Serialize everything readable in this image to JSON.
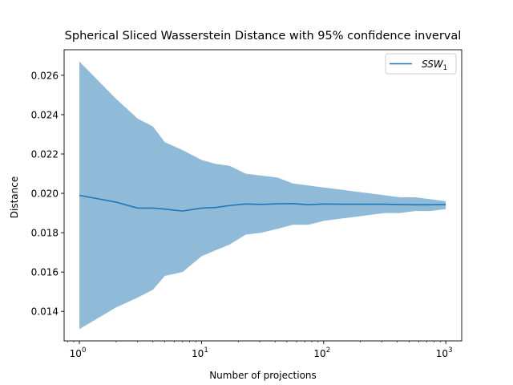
{
  "chart_data": {
    "type": "line",
    "title": "Spherical Sliced Wasserstein Distance with 95% confidence inverval",
    "xlabel": "Number of projections",
    "ylabel": "Distance",
    "xscale": "log",
    "xlim": [
      0.75,
      1350
    ],
    "ylim": [
      0.0125,
      0.0273
    ],
    "grid": false,
    "legend_position": "top-right",
    "x_ticks": [
      {
        "value": 1,
        "base": "10",
        "exp": "0"
      },
      {
        "value": 10,
        "base": "10",
        "exp": "1"
      },
      {
        "value": 100,
        "base": "10",
        "exp": "2"
      },
      {
        "value": 1000,
        "base": "10",
        "exp": "3"
      }
    ],
    "y_ticks": [
      {
        "value": 0.014,
        "label": "0.014"
      },
      {
        "value": 0.016,
        "label": "0.016"
      },
      {
        "value": 0.018,
        "label": "0.018"
      },
      {
        "value": 0.02,
        "label": "0.020"
      },
      {
        "value": 0.022,
        "label": "0.022"
      },
      {
        "value": 0.024,
        "label": "0.024"
      },
      {
        "value": 0.026,
        "label": "0.026"
      }
    ],
    "series": [
      {
        "name": "SSW",
        "name_subscript": "1",
        "color": "#1f77b4",
        "band_color": "#1f77b4",
        "band_alpha": 0.5,
        "x": [
          1,
          2,
          3,
          4,
          5,
          7,
          10,
          13,
          17,
          23,
          31,
          42,
          56,
          75,
          100,
          133,
          178,
          237,
          316,
          422,
          562,
          750,
          1000
        ],
        "y": [
          0.0199,
          0.01955,
          0.01925,
          0.01925,
          0.0192,
          0.0191,
          0.01925,
          0.01928,
          0.01938,
          0.01946,
          0.01944,
          0.01947,
          0.01948,
          0.01942,
          0.01946,
          0.01945,
          0.01945,
          0.01945,
          0.01945,
          0.01943,
          0.01942,
          0.01942,
          0.01943
        ],
        "lower": [
          0.0131,
          0.0142,
          0.0147,
          0.0151,
          0.0158,
          0.016,
          0.0168,
          0.0171,
          0.0174,
          0.0179,
          0.018,
          0.0182,
          0.0184,
          0.0184,
          0.0186,
          0.0187,
          0.0188,
          0.0189,
          0.019,
          0.019,
          0.0191,
          0.0191,
          0.0192
        ],
        "upper": [
          0.0267,
          0.0248,
          0.0238,
          0.0234,
          0.0226,
          0.0222,
          0.0217,
          0.0215,
          0.0214,
          0.021,
          0.0209,
          0.0208,
          0.0205,
          0.0204,
          0.0203,
          0.0202,
          0.0201,
          0.02,
          0.0199,
          0.0198,
          0.0198,
          0.0197,
          0.0196
        ]
      }
    ]
  }
}
